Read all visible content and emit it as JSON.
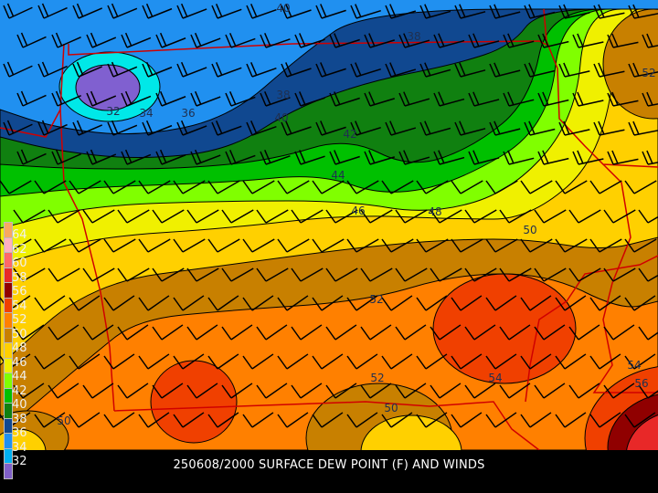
{
  "caption": "250608/2000 SURFACE DEW POINT (F) AND WINDS",
  "legend": {
    "levels": [
      "64",
      "62",
      "60",
      "58",
      "56",
      "54",
      "52",
      "50",
      "48",
      "46",
      "44",
      "42",
      "40",
      "38",
      "36",
      "34",
      "32"
    ],
    "colors": [
      "#f8a860",
      "#ffb0c0",
      "#ff6868",
      "#e82828",
      "#900000",
      "#f04000",
      "#ff8000",
      "#c88000",
      "#ffd000",
      "#f0f000",
      "#80ff00",
      "#00c000",
      "#108010",
      "#104890",
      "#2090f0",
      "#00b0f0",
      "#8060c8"
    ]
  },
  "fill_colors": {
    "32": "#8060d0",
    "34": "#00e8e8",
    "36": "#2090f0",
    "38": "#104890",
    "40": "#108010",
    "42": "#00c000",
    "44": "#80ff00",
    "46": "#f0f000",
    "48": "#ffd000",
    "50": "#c88000",
    "52": "#ff8000",
    "54": "#f04000",
    "56": "#900000",
    "58": "#e82828",
    "60": "#ff6868",
    "border": "#d00000"
  },
  "contour_labels": [
    "40",
    "38",
    "52",
    "32",
    "34",
    "36",
    "38",
    "40",
    "42",
    "44",
    "46",
    "48",
    "50",
    "52",
    "52",
    "54",
    "50",
    "54",
    "56",
    "50"
  ]
}
